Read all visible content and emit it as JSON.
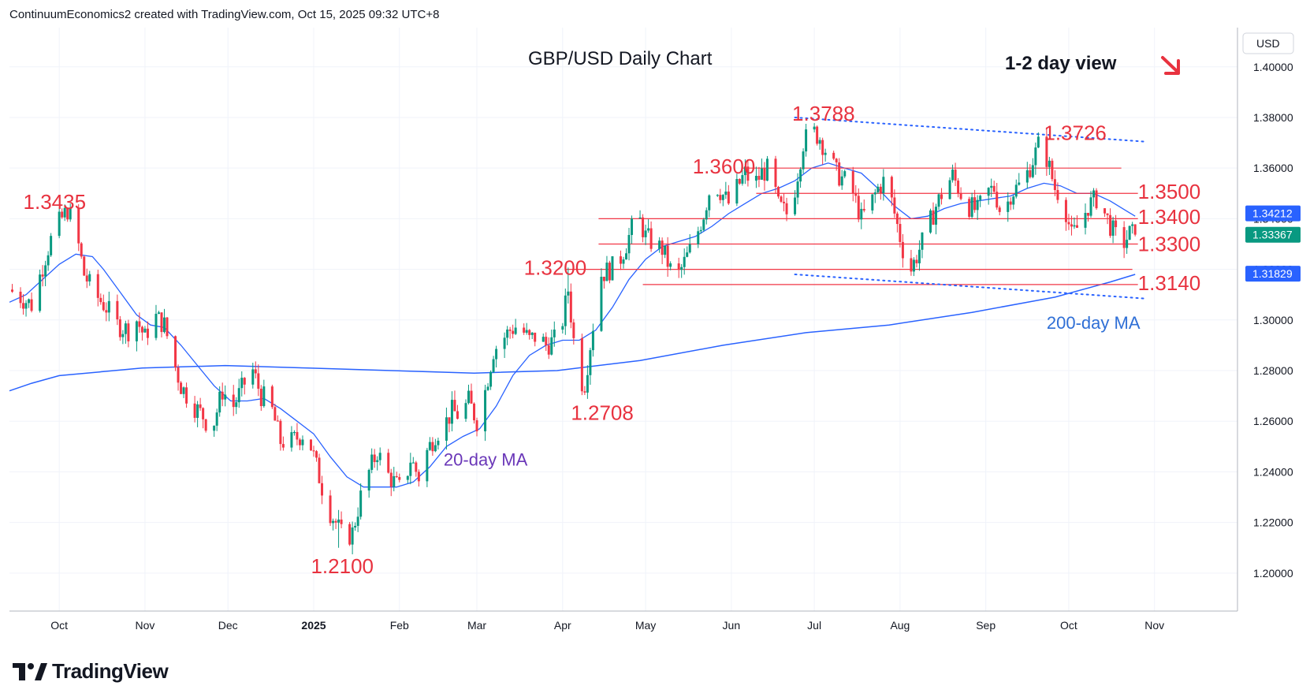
{
  "header": {
    "attribution": "ContinuumEconomics2 created with TradingView.com, Oct 15, 2025 09:32 UTC+8"
  },
  "brand": {
    "name": "TradingView",
    "logo_icon": "tradingview-logo-icon"
  },
  "colors": {
    "up": "#089981",
    "down": "#f23645",
    "resistance": "#f23645",
    "ma20": "#2962ff",
    "ma200": "#2962ff",
    "trend": "#2962ff",
    "label_red": "#e8323f",
    "label_blue": "#2f6fd6",
    "label_purple": "#6a37b8",
    "grid": "#f0f3fa",
    "text": "#131722"
  },
  "chart_data": {
    "type": "candlestick",
    "title": "GBP/USD Daily Chart",
    "view_label": "1-2 day view",
    "view_direction_icon": "arrow-down-right-icon",
    "currency_label": "USD",
    "ylim": [
      1.185,
      1.4155
    ],
    "yticks": [
      1.2,
      1.22,
      1.24,
      1.26,
      1.28,
      1.3,
      1.32,
      1.34,
      1.36,
      1.38,
      1.4
    ],
    "ytick_labels": [
      "1.20000",
      "1.22000",
      "1.24000",
      "1.26000",
      "1.28000",
      "1.30000",
      "1.32000",
      "1.34000",
      "1.36000",
      "1.38000",
      "1.40000"
    ],
    "x_range_days": [
      -18,
      426
    ],
    "xticks": [
      {
        "label": "Oct",
        "day": 0,
        "bold": false
      },
      {
        "label": "Nov",
        "day": 31,
        "bold": false
      },
      {
        "label": "Dec",
        "day": 61,
        "bold": false
      },
      {
        "label": "2025",
        "day": 92,
        "bold": true
      },
      {
        "label": "Feb",
        "day": 123,
        "bold": false
      },
      {
        "label": "Mar",
        "day": 151,
        "bold": false
      },
      {
        "label": "Apr",
        "day": 182,
        "bold": false
      },
      {
        "label": "May",
        "day": 212,
        "bold": false
      },
      {
        "label": "Jun",
        "day": 243,
        "bold": false
      },
      {
        "label": "Jul",
        "day": 273,
        "bold": false
      },
      {
        "label": "Aug",
        "day": 304,
        "bold": false
      },
      {
        "label": "Sep",
        "day": 335,
        "bold": false
      },
      {
        "label": "Oct",
        "day": 365,
        "bold": false
      },
      {
        "label": "Nov",
        "day": 396,
        "bold": false
      }
    ],
    "price_path": [
      [
        -18,
        1.312
      ],
      [
        -10,
        1.306
      ],
      [
        -5,
        1.325
      ],
      [
        -2,
        1.335
      ],
      [
        3,
        1.3435
      ],
      [
        6,
        1.335
      ],
      [
        9,
        1.318
      ],
      [
        13,
        1.31
      ],
      [
        17,
        1.305
      ],
      [
        21,
        1.298
      ],
      [
        25,
        1.296
      ],
      [
        28,
        1.3
      ],
      [
        31,
        1.293
      ],
      [
        34,
        1.302
      ],
      [
        38,
        1.298
      ],
      [
        41,
        1.285
      ],
      [
        44,
        1.274
      ],
      [
        48,
        1.267
      ],
      [
        52,
        1.262
      ],
      [
        55,
        1.256
      ],
      [
        59,
        1.272
      ],
      [
        63,
        1.266
      ],
      [
        67,
        1.275
      ],
      [
        70,
        1.28
      ],
      [
        73,
        1.27
      ],
      [
        76,
        1.268
      ],
      [
        80,
        1.252
      ],
      [
        84,
        1.252
      ],
      [
        88,
        1.255
      ],
      [
        91,
        1.25
      ],
      [
        94,
        1.238
      ],
      [
        97,
        1.226
      ],
      [
        100,
        1.22
      ],
      [
        103,
        1.213
      ],
      [
        106,
        1.216
      ],
      [
        109,
        1.23
      ],
      [
        112,
        1.24
      ],
      [
        115,
        1.248
      ],
      [
        118,
        1.24
      ],
      [
        121,
        1.236
      ],
      [
        124,
        1.232
      ],
      [
        127,
        1.245
      ],
      [
        130,
        1.238
      ],
      [
        133,
        1.248
      ],
      [
        136,
        1.255
      ],
      [
        139,
        1.258
      ],
      [
        142,
        1.264
      ],
      [
        145,
        1.262
      ],
      [
        148,
        1.268
      ],
      [
        151,
        1.26
      ],
      [
        154,
        1.272
      ],
      [
        157,
        1.288
      ],
      [
        160,
        1.292
      ],
      [
        163,
        1.296
      ],
      [
        166,
        1.298
      ],
      [
        170,
        1.292
      ],
      [
        173,
        1.294
      ],
      [
        176,
        1.29
      ],
      [
        179,
        1.292
      ],
      [
        182,
        1.3
      ],
      [
        184,
        1.312
      ],
      [
        186,
        1.292
      ],
      [
        188,
        1.276
      ],
      [
        190,
        1.275
      ],
      [
        193,
        1.298
      ],
      [
        196,
        1.318
      ],
      [
        199,
        1.32
      ],
      [
        202,
        1.322
      ],
      [
        205,
        1.33
      ],
      [
        209,
        1.342
      ],
      [
        212,
        1.333
      ],
      [
        215,
        1.33
      ],
      [
        218,
        1.328
      ],
      [
        221,
        1.32
      ],
      [
        224,
        1.318
      ],
      [
        227,
        1.325
      ],
      [
        230,
        1.332
      ],
      [
        233,
        1.342
      ],
      [
        236,
        1.355
      ],
      [
        239,
        1.351
      ],
      [
        242,
        1.346
      ],
      [
        245,
        1.352
      ],
      [
        248,
        1.358
      ],
      [
        251,
        1.353
      ],
      [
        254,
        1.358
      ],
      [
        257,
        1.36
      ],
      [
        260,
        1.345
      ],
      [
        263,
        1.342
      ],
      [
        266,
        1.352
      ],
      [
        269,
        1.37
      ],
      [
        272,
        1.375
      ],
      [
        275,
        1.372
      ],
      [
        278,
        1.365
      ],
      [
        281,
        1.358
      ],
      [
        284,
        1.355
      ],
      [
        287,
        1.35
      ],
      [
        290,
        1.34
      ],
      [
        293,
        1.345
      ],
      [
        296,
        1.352
      ],
      [
        299,
        1.356
      ],
      [
        302,
        1.342
      ],
      [
        305,
        1.328
      ],
      [
        308,
        1.32
      ],
      [
        311,
        1.328
      ],
      [
        314,
        1.336
      ],
      [
        317,
        1.345
      ],
      [
        320,
        1.352
      ],
      [
        323,
        1.357
      ],
      [
        326,
        1.35
      ],
      [
        329,
        1.345
      ],
      [
        332,
        1.343
      ],
      [
        335,
        1.35
      ],
      [
        338,
        1.352
      ],
      [
        341,
        1.34
      ],
      [
        344,
        1.35
      ],
      [
        347,
        1.353
      ],
      [
        350,
        1.358
      ],
      [
        353,
        1.366
      ],
      [
        355,
        1.372
      ],
      [
        357,
        1.364
      ],
      [
        360,
        1.352
      ],
      [
        363,
        1.348
      ],
      [
        366,
        1.333
      ],
      [
        369,
        1.338
      ],
      [
        372,
        1.345
      ],
      [
        375,
        1.348
      ],
      [
        378,
        1.342
      ],
      [
        381,
        1.335
      ],
      [
        384,
        1.329
      ],
      [
        387,
        1.334
      ],
      [
        389,
        1.3337
      ]
    ],
    "ma20_path": [
      [
        -18,
        1.307
      ],
      [
        -12,
        1.31
      ],
      [
        -6,
        1.316
      ],
      [
        0,
        1.322
      ],
      [
        6,
        1.326
      ],
      [
        12,
        1.325
      ],
      [
        16,
        1.32
      ],
      [
        22,
        1.311
      ],
      [
        28,
        1.302
      ],
      [
        33,
        1.298
      ],
      [
        38,
        1.297
      ],
      [
        44,
        1.29
      ],
      [
        50,
        1.282
      ],
      [
        56,
        1.274
      ],
      [
        62,
        1.268
      ],
      [
        68,
        1.268
      ],
      [
        74,
        1.269
      ],
      [
        80,
        1.265
      ],
      [
        86,
        1.26
      ],
      [
        92,
        1.255
      ],
      [
        98,
        1.246
      ],
      [
        104,
        1.238
      ],
      [
        110,
        1.234
      ],
      [
        116,
        1.234
      ],
      [
        122,
        1.234
      ],
      [
        128,
        1.236
      ],
      [
        134,
        1.242
      ],
      [
        140,
        1.25
      ],
      [
        146,
        1.254
      ],
      [
        152,
        1.257
      ],
      [
        158,
        1.266
      ],
      [
        164,
        1.278
      ],
      [
        170,
        1.286
      ],
      [
        176,
        1.29
      ],
      [
        182,
        1.292
      ],
      [
        188,
        1.292
      ],
      [
        194,
        1.296
      ],
      [
        200,
        1.305
      ],
      [
        206,
        1.316
      ],
      [
        212,
        1.324
      ],
      [
        218,
        1.329
      ],
      [
        224,
        1.331
      ],
      [
        230,
        1.333
      ],
      [
        236,
        1.337
      ],
      [
        242,
        1.342
      ],
      [
        248,
        1.346
      ],
      [
        254,
        1.35
      ],
      [
        260,
        1.352
      ],
      [
        266,
        1.355
      ],
      [
        272,
        1.36
      ],
      [
        278,
        1.362
      ],
      [
        284,
        1.36
      ],
      [
        290,
        1.358
      ],
      [
        296,
        1.352
      ],
      [
        302,
        1.345
      ],
      [
        308,
        1.34
      ],
      [
        314,
        1.341
      ],
      [
        320,
        1.344
      ],
      [
        326,
        1.346
      ],
      [
        332,
        1.347
      ],
      [
        338,
        1.348
      ],
      [
        344,
        1.349
      ],
      [
        350,
        1.352
      ],
      [
        356,
        1.354
      ],
      [
        362,
        1.353
      ],
      [
        368,
        1.35
      ],
      [
        374,
        1.35
      ],
      [
        380,
        1.347
      ],
      [
        386,
        1.343
      ],
      [
        389,
        1.341
      ]
    ],
    "ma200_path": [
      [
        -18,
        1.272
      ],
      [
        -10,
        1.275
      ],
      [
        0,
        1.278
      ],
      [
        30,
        1.281
      ],
      [
        60,
        1.282
      ],
      [
        90,
        1.281
      ],
      [
        120,
        1.28
      ],
      [
        150,
        1.279
      ],
      [
        180,
        1.28
      ],
      [
        210,
        1.284
      ],
      [
        240,
        1.29
      ],
      [
        270,
        1.295
      ],
      [
        300,
        1.298
      ],
      [
        330,
        1.303
      ],
      [
        360,
        1.309
      ],
      [
        380,
        1.315
      ],
      [
        389,
        1.318
      ]
    ],
    "resistance_lines": [
      {
        "price": 1.36,
        "day_from": 247,
        "day_to": 384,
        "label": "1.3600"
      },
      {
        "price": 1.35,
        "day_from": 252,
        "day_to": 390,
        "label": "1.3500"
      },
      {
        "price": 1.34,
        "day_from": 195,
        "day_to": 390,
        "label": "1.3400"
      },
      {
        "price": 1.33,
        "day_from": 195,
        "day_to": 390,
        "label": "1.3300"
      },
      {
        "price": 1.32,
        "day_from": 183,
        "day_to": 388,
        "label": "1.3200"
      },
      {
        "price": 1.314,
        "day_from": 211,
        "day_to": 390,
        "label": "1.3140"
      }
    ],
    "trend_lines": [
      {
        "from": [
          266,
          1.38
        ],
        "to": [
          392,
          1.3705
        ]
      },
      {
        "from": [
          266,
          1.318
        ],
        "to": [
          392,
          1.3085
        ]
      }
    ],
    "annotations": [
      {
        "text": "1.3435",
        "day": -13,
        "price": 1.3467,
        "color": "red"
      },
      {
        "text": "1.2100",
        "day": 91,
        "price": 1.2027,
        "color": "red"
      },
      {
        "text": "1.2708",
        "day": 185,
        "price": 1.2633,
        "color": "red"
      },
      {
        "text": "1.3200",
        "day": 168,
        "price": 1.3207,
        "color": "red"
      },
      {
        "text": "1.3600",
        "day": 229,
        "price": 1.3607,
        "color": "red"
      },
      {
        "text": "1.3788",
        "day": 265,
        "price": 1.3816,
        "color": "red"
      },
      {
        "text": "1.3726",
        "day": 356,
        "price": 1.3739,
        "color": "red"
      },
      {
        "text": "1.3500",
        "day": 390,
        "price": 1.3507,
        "color": "red"
      },
      {
        "text": "1.3400",
        "day": 390,
        "price": 1.3407,
        "color": "red"
      },
      {
        "text": "1.3300",
        "day": 390,
        "price": 1.33,
        "color": "red"
      },
      {
        "text": "1.3140",
        "day": 390,
        "price": 1.3146,
        "color": "red"
      },
      {
        "text": "20-day MA",
        "day": 139,
        "price": 1.2453,
        "color": "purple"
      },
      {
        "text": "200-day MA",
        "day": 357,
        "price": 1.2993,
        "color": "blue"
      }
    ],
    "price_badges": [
      {
        "label": "1.34212",
        "price": 1.34212,
        "color": "#2962ff"
      },
      {
        "label": "1.33367",
        "price": 1.33367,
        "color": "#089981"
      },
      {
        "label": "1.31829",
        "price": 1.31829,
        "color": "#2962ff"
      }
    ]
  }
}
